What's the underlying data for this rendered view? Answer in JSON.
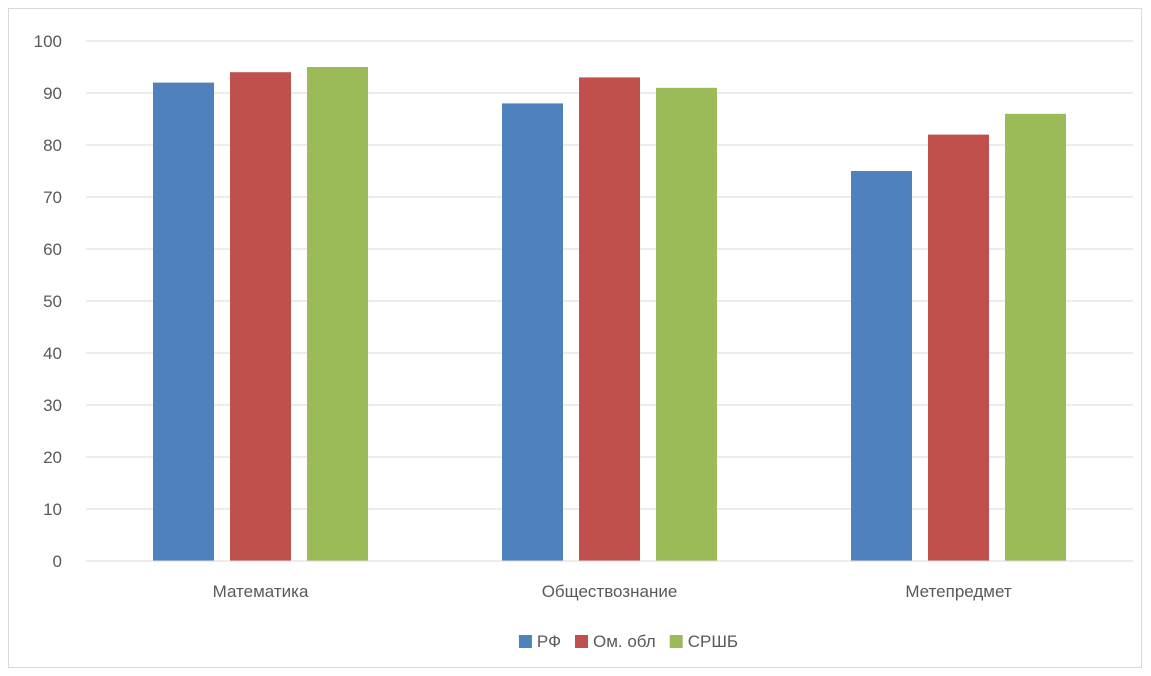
{
  "chart_data": {
    "type": "bar",
    "categories": [
      "Математика",
      "Обществознание",
      "Метепредмет"
    ],
    "series": [
      {
        "name": "РФ",
        "color": "#4f81bd",
        "values": [
          92,
          88,
          75
        ]
      },
      {
        "name": "Ом. обл",
        "color": "#c0504d",
        "values": [
          94,
          93,
          82
        ]
      },
      {
        "name": "СРШБ",
        "color": "#9bbb59",
        "values": [
          95,
          91,
          86
        ]
      }
    ],
    "ylim": [
      0,
      100
    ],
    "yticks": [
      0,
      10,
      20,
      30,
      40,
      50,
      60,
      70,
      80,
      90,
      100
    ],
    "grid": true,
    "legend_position": "bottom"
  }
}
